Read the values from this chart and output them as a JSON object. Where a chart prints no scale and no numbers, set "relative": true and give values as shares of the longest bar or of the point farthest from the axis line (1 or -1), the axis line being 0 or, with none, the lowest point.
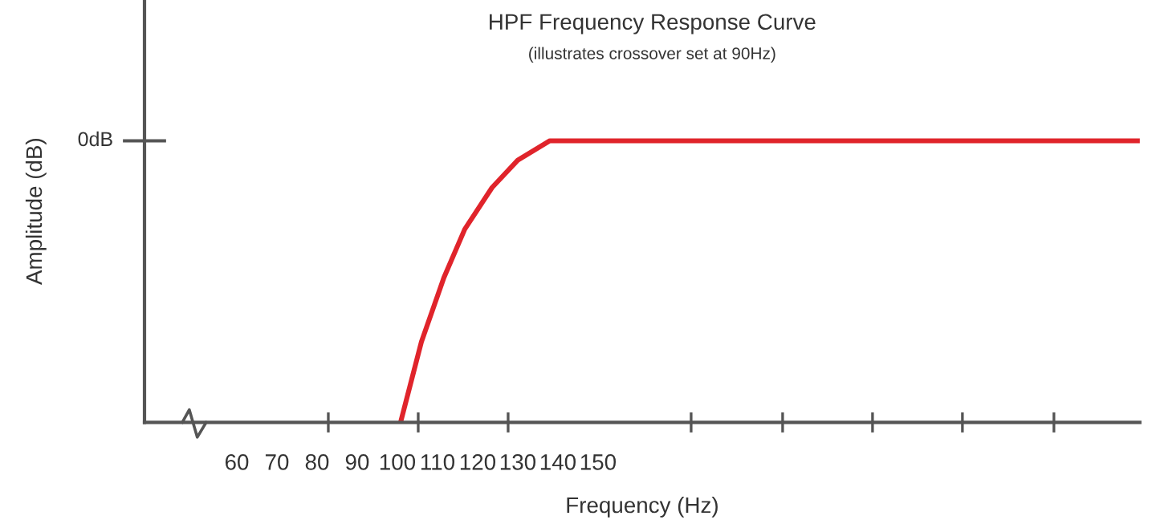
{
  "chart_data": {
    "type": "line",
    "title": "HPF Frequency Response Curve",
    "subtitle": "(illustrates crossover set at 90Hz)",
    "xlabel": "Frequency (Hz)",
    "ylabel": "Amplitude (dB)",
    "relative": true,
    "x": [
      100.8,
      106,
      111.6,
      116.8,
      123.6,
      130,
      138,
      285
    ],
    "series": [
      {
        "color": "#e0242b",
        "values": [
          0,
          0.286,
          0.514,
          0.686,
          0.834,
          0.931,
          1,
          1
        ]
      }
    ],
    "xlim": [
      37,
      285
    ],
    "xticks": [
      60,
      70,
      80,
      90,
      100,
      110,
      120,
      130,
      140,
      150,
      {
        "value": 82.8,
        "label": null
      },
      {
        "value": 105.2,
        "label": null
      },
      {
        "value": 127.6,
        "label": null
      },
      {
        "value": 173.2,
        "label": null
      },
      {
        "value": 196,
        "label": null
      },
      {
        "value": 218.4,
        "label": null
      },
      {
        "value": 240.8,
        "label": null
      },
      {
        "value": 263.6,
        "label": null
      }
    ],
    "annotations": [
      "0dB"
    ],
    "grid": false,
    "legend": false,
    "marker": "none",
    "line_style": "solid"
  }
}
